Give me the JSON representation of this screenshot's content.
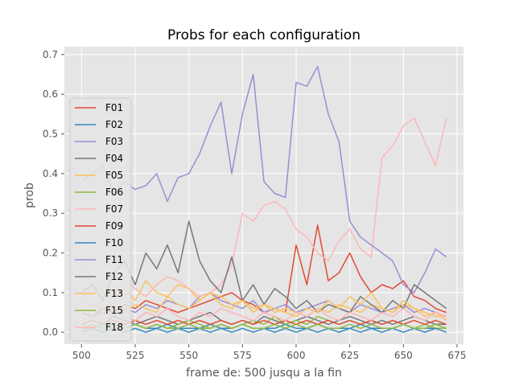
{
  "chart_data": {
    "type": "line",
    "title": "Probs for each configuration",
    "xlabel": "frame de: 500 jusqu a la fin",
    "ylabel": "prob",
    "xlim": [
      492,
      678
    ],
    "ylim": [
      -0.03,
      0.72
    ],
    "x_ticks": [
      500,
      525,
      550,
      575,
      600,
      625,
      650,
      675
    ],
    "y_ticks": [
      0.0,
      0.1,
      0.2,
      0.3,
      0.4,
      0.5,
      0.6,
      0.7
    ],
    "grid": true,
    "legend_position": "left",
    "background": "#e5e5e5",
    "series": [
      {
        "name": "F01",
        "color": "#e24a33",
        "x_start": 500,
        "x_step": 5,
        "values": [
          0.05,
          0.04,
          0.06,
          0.05,
          0.07,
          0.06,
          0.08,
          0.07,
          0.06,
          0.05,
          0.06,
          0.07,
          0.08,
          0.09,
          0.1,
          0.08,
          0.07,
          0.05,
          0.06,
          0.05,
          0.22,
          0.12,
          0.27,
          0.13,
          0.15,
          0.2,
          0.14,
          0.1,
          0.12,
          0.11,
          0.13,
          0.09,
          0.08,
          0.06,
          0.05
        ]
      },
      {
        "name": "F02",
        "color": "#348abd",
        "x_start": 500,
        "x_step": 5,
        "values": [
          0.01,
          0.01,
          0.02,
          0.01,
          0.01,
          0.02,
          0.01,
          0.01,
          0.02,
          0.01,
          0.01,
          0.01,
          0.02,
          0.01,
          0.01,
          0.02,
          0.01,
          0.01,
          0.01,
          0.02,
          0.01,
          0.01,
          0.02,
          0.01,
          0.01,
          0.01,
          0.02,
          0.01,
          0.01,
          0.01,
          0.02,
          0.01,
          0.01,
          0.01,
          0.01
        ]
      },
      {
        "name": "F03",
        "color": "#988ed5",
        "x_start": 500,
        "x_step": 5,
        "values": [
          0.03,
          0.04,
          0.05,
          0.04,
          0.06,
          0.05,
          0.07,
          0.06,
          0.08,
          0.07,
          0.06,
          0.09,
          0.1,
          0.08,
          0.07,
          0.06,
          0.08,
          0.05,
          0.06,
          0.07,
          0.05,
          0.06,
          0.07,
          0.08,
          0.06,
          0.05,
          0.07,
          0.06,
          0.05,
          0.06,
          0.07,
          0.05,
          0.06,
          0.05,
          0.04
        ]
      },
      {
        "name": "F04",
        "color": "#777777",
        "x_start": 500,
        "x_step": 5,
        "values": [
          0.02,
          0.03,
          0.02,
          0.04,
          0.03,
          0.02,
          0.03,
          0.04,
          0.03,
          0.02,
          0.03,
          0.04,
          0.05,
          0.03,
          0.02,
          0.03,
          0.02,
          0.04,
          0.03,
          0.02,
          0.03,
          0.04,
          0.03,
          0.02,
          0.03,
          0.04,
          0.03,
          0.02,
          0.03,
          0.02,
          0.03,
          0.04,
          0.03,
          0.02,
          0.02
        ]
      },
      {
        "name": "F05",
        "color": "#fbc15e",
        "x_start": 500,
        "x_step": 5,
        "values": [
          0.08,
          0.12,
          0.1,
          0.09,
          0.11,
          0.08,
          0.13,
          0.1,
          0.09,
          0.12,
          0.11,
          0.08,
          0.1,
          0.09,
          0.07,
          0.08,
          0.06,
          0.07,
          0.05,
          0.06,
          0.05,
          0.04,
          0.06,
          0.05,
          0.07,
          0.06,
          0.05,
          0.07,
          0.06,
          0.05,
          0.07,
          0.06,
          0.05,
          0.04,
          0.04
        ]
      },
      {
        "name": "F06",
        "color": "#8eba42",
        "x_start": 500,
        "x_step": 5,
        "values": [
          0.01,
          0.02,
          0.01,
          0.02,
          0.01,
          0.02,
          0.01,
          0.02,
          0.01,
          0.02,
          0.03,
          0.02,
          0.01,
          0.02,
          0.01,
          0.02,
          0.03,
          0.02,
          0.04,
          0.02,
          0.03,
          0.02,
          0.04,
          0.03,
          0.02,
          0.03,
          0.02,
          0.03,
          0.02,
          0.03,
          0.02,
          0.01,
          0.02,
          0.01,
          0.01
        ]
      },
      {
        "name": "F07",
        "color": "#ffb5b8",
        "x_start": 500,
        "x_step": 5,
        "values": [
          0.17,
          0.14,
          0.12,
          0.1,
          0.13,
          0.11,
          0.09,
          0.12,
          0.14,
          0.13,
          0.11,
          0.09,
          0.1,
          0.12,
          0.17,
          0.3,
          0.28,
          0.32,
          0.33,
          0.31,
          0.26,
          0.24,
          0.2,
          0.18,
          0.23,
          0.26,
          0.21,
          0.19,
          0.44,
          0.47,
          0.52,
          0.54,
          0.48,
          0.42,
          0.54
        ]
      },
      {
        "name": "F09",
        "color": "#e24a33",
        "x_start": 500,
        "x_step": 5,
        "values": [
          0.02,
          0.03,
          0.02,
          0.03,
          0.02,
          0.03,
          0.02,
          0.03,
          0.02,
          0.03,
          0.02,
          0.03,
          0.02,
          0.03,
          0.02,
          0.03,
          0.02,
          0.03,
          0.02,
          0.03,
          0.02,
          0.03,
          0.02,
          0.03,
          0.02,
          0.03,
          0.02,
          0.03,
          0.02,
          0.03,
          0.02,
          0.03,
          0.02,
          0.03,
          0.02
        ]
      },
      {
        "name": "F10",
        "color": "#348abd",
        "x_start": 500,
        "x_step": 5,
        "values": [
          0.0,
          0.01,
          0.0,
          0.01,
          0.0,
          0.01,
          0.0,
          0.01,
          0.0,
          0.01,
          0.0,
          0.01,
          0.0,
          0.01,
          0.0,
          0.01,
          0.0,
          0.01,
          0.0,
          0.01,
          0.0,
          0.01,
          0.0,
          0.01,
          0.0,
          0.01,
          0.0,
          0.01,
          0.0,
          0.01,
          0.0,
          0.01,
          0.0,
          0.01,
          0.0
        ]
      },
      {
        "name": "F11",
        "color": "#988ed5",
        "x_start": 500,
        "x_step": 5,
        "values": [
          0.38,
          0.4,
          0.42,
          0.35,
          0.38,
          0.36,
          0.37,
          0.4,
          0.33,
          0.39,
          0.4,
          0.45,
          0.52,
          0.58,
          0.4,
          0.55,
          0.65,
          0.38,
          0.35,
          0.34,
          0.63,
          0.62,
          0.67,
          0.55,
          0.48,
          0.28,
          0.24,
          0.22,
          0.2,
          0.18,
          0.12,
          0.1,
          0.15,
          0.21,
          0.19
        ]
      },
      {
        "name": "F12",
        "color": "#777777",
        "x_start": 500,
        "x_step": 5,
        "values": [
          0.1,
          0.12,
          0.08,
          0.15,
          0.18,
          0.12,
          0.2,
          0.16,
          0.22,
          0.15,
          0.28,
          0.18,
          0.13,
          0.1,
          0.19,
          0.08,
          0.12,
          0.07,
          0.11,
          0.09,
          0.06,
          0.08,
          0.05,
          0.07,
          0.06,
          0.05,
          0.09,
          0.07,
          0.05,
          0.08,
          0.06,
          0.12,
          0.1,
          0.08,
          0.06
        ]
      },
      {
        "name": "F13",
        "color": "#fbc15e",
        "x_start": 500,
        "x_step": 5,
        "values": [
          0.05,
          0.07,
          0.06,
          0.08,
          0.05,
          0.07,
          0.06,
          0.05,
          0.09,
          0.07,
          0.06,
          0.08,
          0.1,
          0.07,
          0.06,
          0.08,
          0.05,
          0.07,
          0.06,
          0.05,
          0.04,
          0.06,
          0.05,
          0.08,
          0.06,
          0.09,
          0.07,
          0.1,
          0.06,
          0.05,
          0.08,
          0.06,
          0.04,
          0.05,
          0.03
        ]
      },
      {
        "name": "F15",
        "color": "#8eba42",
        "x_start": 500,
        "x_step": 5,
        "values": [
          0.01,
          0.01,
          0.02,
          0.01,
          0.01,
          0.02,
          0.01,
          0.02,
          0.01,
          0.01,
          0.02,
          0.01,
          0.01,
          0.02,
          0.01,
          0.02,
          0.01,
          0.01,
          0.02,
          0.01,
          0.02,
          0.01,
          0.02,
          0.01,
          0.01,
          0.02,
          0.01,
          0.02,
          0.01,
          0.01,
          0.02,
          0.01,
          0.01,
          0.02,
          0.01
        ]
      },
      {
        "name": "F18",
        "color": "#ffb5b8",
        "x_start": 500,
        "x_step": 5,
        "values": [
          0.03,
          0.04,
          0.03,
          0.05,
          0.04,
          0.03,
          0.05,
          0.04,
          0.06,
          0.04,
          0.03,
          0.05,
          0.04,
          0.06,
          0.05,
          0.04,
          0.03,
          0.05,
          0.04,
          0.03,
          0.05,
          0.04,
          0.06,
          0.04,
          0.03,
          0.05,
          0.04,
          0.03,
          0.05,
          0.04,
          0.06,
          0.04,
          0.03,
          0.05,
          0.04
        ]
      }
    ]
  }
}
